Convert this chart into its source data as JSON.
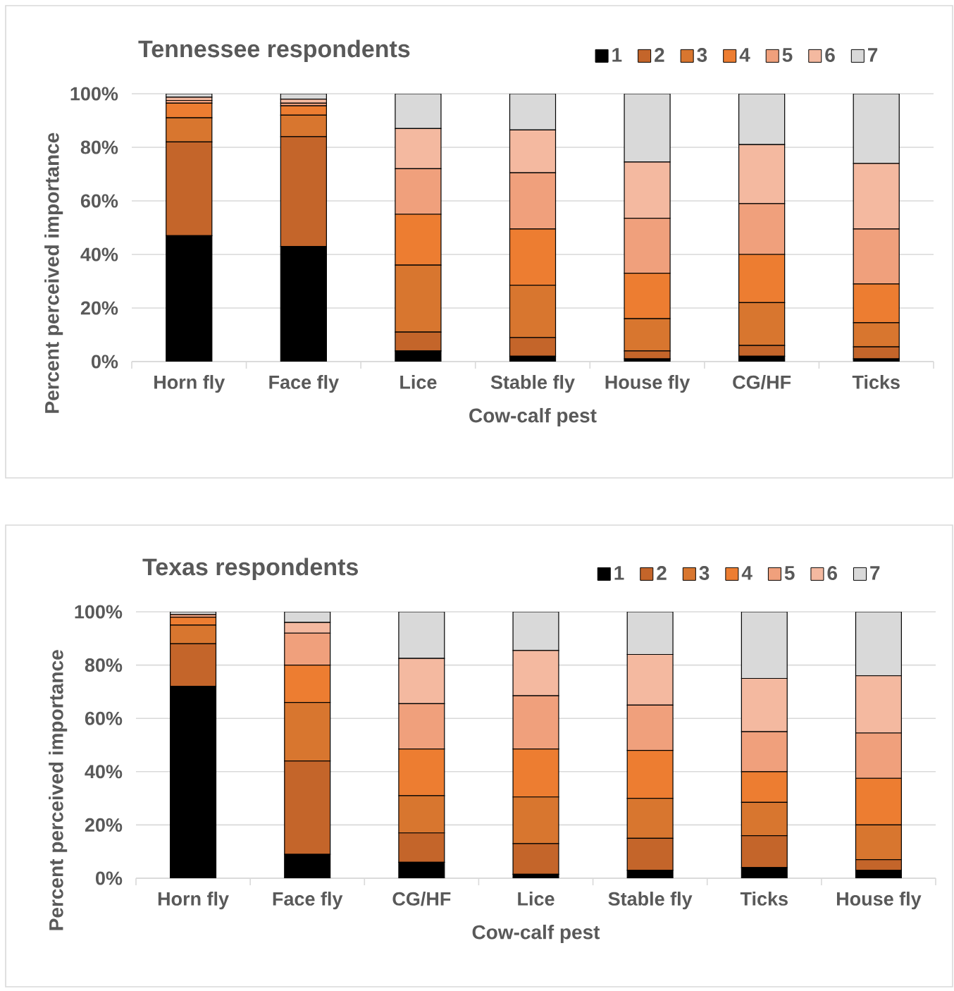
{
  "chart_data": [
    {
      "type": "bar",
      "title": "Tennessee respondents",
      "xlabel": "Cow-calf pest",
      "ylabel": "Percent perceived importance",
      "stacked": true,
      "grid": "y",
      "legend": "top",
      "categories": [
        "Horn fly",
        "Face fly",
        "Lice",
        "Stable fly",
        "House fly",
        "CG/HF",
        "Ticks"
      ],
      "ylim": [
        0,
        100
      ],
      "yticks": [
        {
          "value": 0,
          "label": "0%"
        },
        {
          "value": 20,
          "label": "20%"
        },
        {
          "value": 40,
          "label": "40%"
        },
        {
          "value": 60,
          "label": "60%"
        },
        {
          "value": 80,
          "label": "80%"
        },
        {
          "value": 100,
          "label": "100%"
        }
      ],
      "series": [
        {
          "name": "1",
          "color": "#000000",
          "values": [
            47,
            43,
            4,
            2,
            1,
            2,
            1
          ]
        },
        {
          "name": "2",
          "color": "#c4652a",
          "values": [
            35,
            41,
            7,
            7,
            3,
            4,
            4.5
          ]
        },
        {
          "name": "3",
          "color": "#d8762f",
          "values": [
            9,
            8,
            25,
            19.5,
            12,
            16,
            9
          ]
        },
        {
          "name": "4",
          "color": "#ed7d31",
          "values": [
            5.5,
            3.5,
            19,
            21,
            17,
            18,
            14.5
          ]
        },
        {
          "name": "5",
          "color": "#f0a07c",
          "values": [
            1,
            1,
            17,
            21,
            20.5,
            19,
            20.5
          ]
        },
        {
          "name": "6",
          "color": "#f4b9a0",
          "values": [
            1.2,
            1.5,
            15,
            16,
            21,
            22,
            24.5
          ]
        },
        {
          "name": "7",
          "color": "#d9d9d9",
          "values": [
            1.3,
            2,
            13,
            13.5,
            25.5,
            19,
            26
          ]
        }
      ]
    },
    {
      "type": "bar",
      "title": "Texas respondents",
      "xlabel": "Cow-calf pest",
      "ylabel": "Percent perceived importance",
      "stacked": true,
      "grid": "y",
      "legend": "top",
      "categories": [
        "Horn fly",
        "Face fly",
        "CG/HF",
        "Lice",
        "Stable fly",
        "Ticks",
        "House fly"
      ],
      "ylim": [
        0,
        100
      ],
      "yticks": [
        {
          "value": 0,
          "label": "0%"
        },
        {
          "value": 20,
          "label": "20%"
        },
        {
          "value": 40,
          "label": "40%"
        },
        {
          "value": 60,
          "label": "60%"
        },
        {
          "value": 80,
          "label": "80%"
        },
        {
          "value": 100,
          "label": "100%"
        }
      ],
      "series": [
        {
          "name": "1",
          "color": "#000000",
          "values": [
            72,
            9,
            6,
            1.5,
            3,
            4,
            3
          ]
        },
        {
          "name": "2",
          "color": "#c4652a",
          "values": [
            16,
            35,
            11,
            11.5,
            12,
            12,
            4
          ]
        },
        {
          "name": "3",
          "color": "#d8762f",
          "values": [
            7,
            22,
            14,
            17.5,
            15,
            12.5,
            13
          ]
        },
        {
          "name": "4",
          "color": "#ed7d31",
          "values": [
            3,
            14,
            17.5,
            18,
            18,
            11.5,
            17.5
          ]
        },
        {
          "name": "5",
          "color": "#f0a07c",
          "values": [
            1,
            12,
            17,
            20,
            17,
            15,
            17
          ]
        },
        {
          "name": "6",
          "color": "#f4b9a0",
          "values": [
            null,
            4,
            17,
            17,
            19,
            20,
            21.5
          ]
        },
        {
          "name": "7",
          "color": "#d9d9d9",
          "values": [
            1,
            4,
            17.5,
            14.5,
            16,
            25,
            24
          ]
        }
      ]
    }
  ]
}
